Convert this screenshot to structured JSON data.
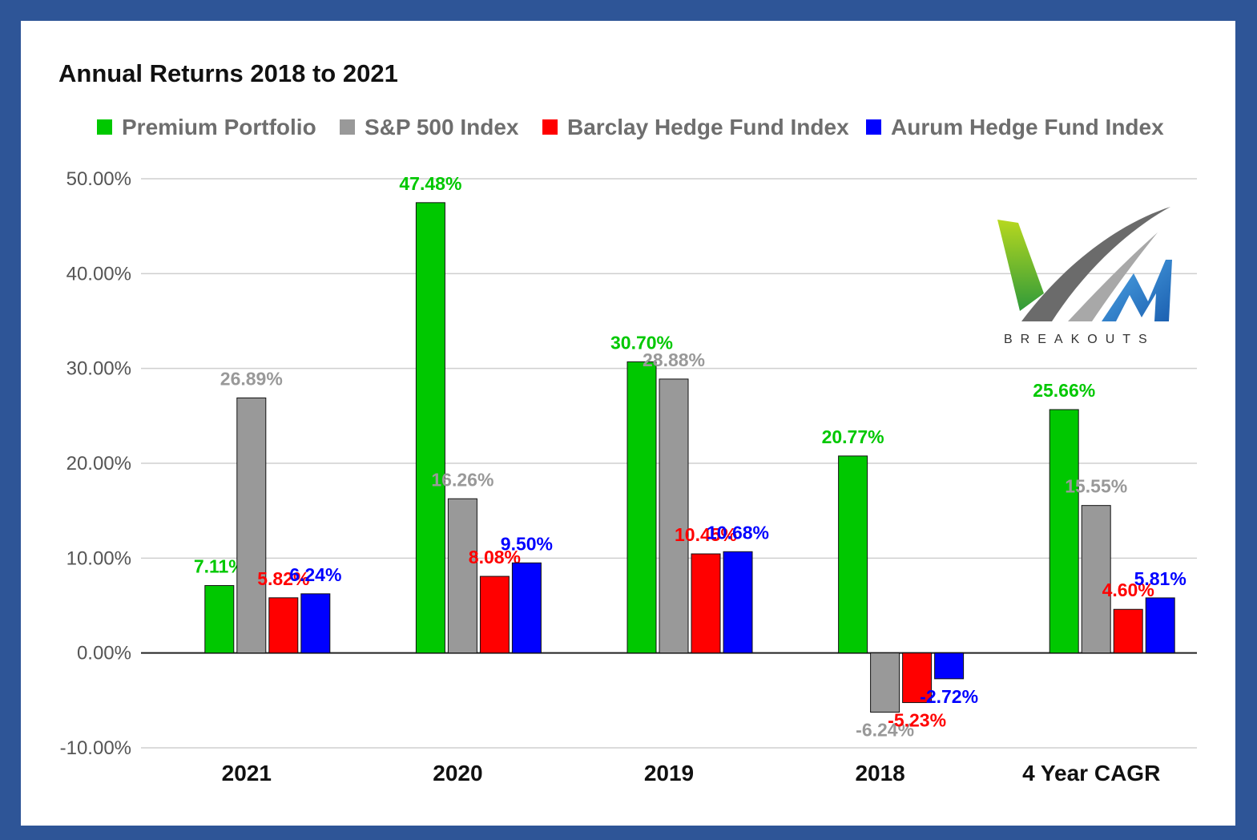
{
  "chart_data": {
    "type": "bar",
    "title": "Annual Returns 2018 to 2021",
    "categories": [
      "2021",
      "2020",
      "2019",
      "2018",
      "4 Year CAGR"
    ],
    "series": [
      {
        "name": "Premium Portfolio",
        "color": "#00c800",
        "values": [
          7.11,
          47.48,
          30.7,
          20.77,
          25.66
        ],
        "labels": [
          "7.11%",
          "47.48%",
          "30.70%",
          "20.77%",
          "25.66%"
        ]
      },
      {
        "name": "S&P 500 Index",
        "color": "#999999",
        "values": [
          26.89,
          16.26,
          28.88,
          -6.24,
          15.55
        ],
        "labels": [
          "26.89%",
          "16.26%",
          "28.88%",
          "-6.24%",
          "15.55%"
        ]
      },
      {
        "name": "Barclay Hedge Fund Index",
        "color": "#ff0000",
        "values": [
          5.82,
          8.08,
          10.45,
          -5.23,
          4.6
        ],
        "labels": [
          "5.82%",
          "8.08%",
          "10.45%",
          "-5.23%",
          "4.60%"
        ]
      },
      {
        "name": "Aurum Hedge Fund Index",
        "color": "#0000ff",
        "values": [
          6.24,
          9.5,
          10.68,
          -2.72,
          5.81
        ],
        "labels": [
          "6.24%",
          "9.50%",
          "10.68%",
          "-2.72%",
          "5.81%"
        ]
      }
    ],
    "ylim": [
      -10,
      50
    ],
    "yticks": [
      "-10.00%",
      "0.00%",
      "10.00%",
      "20.00%",
      "30.00%",
      "40.00%",
      "50.00%"
    ],
    "ytick_values": [
      -10,
      0,
      10,
      20,
      30,
      40,
      50
    ],
    "grid": true,
    "legend_position": "top"
  },
  "logo": {
    "text": "BREAKOUTS"
  }
}
